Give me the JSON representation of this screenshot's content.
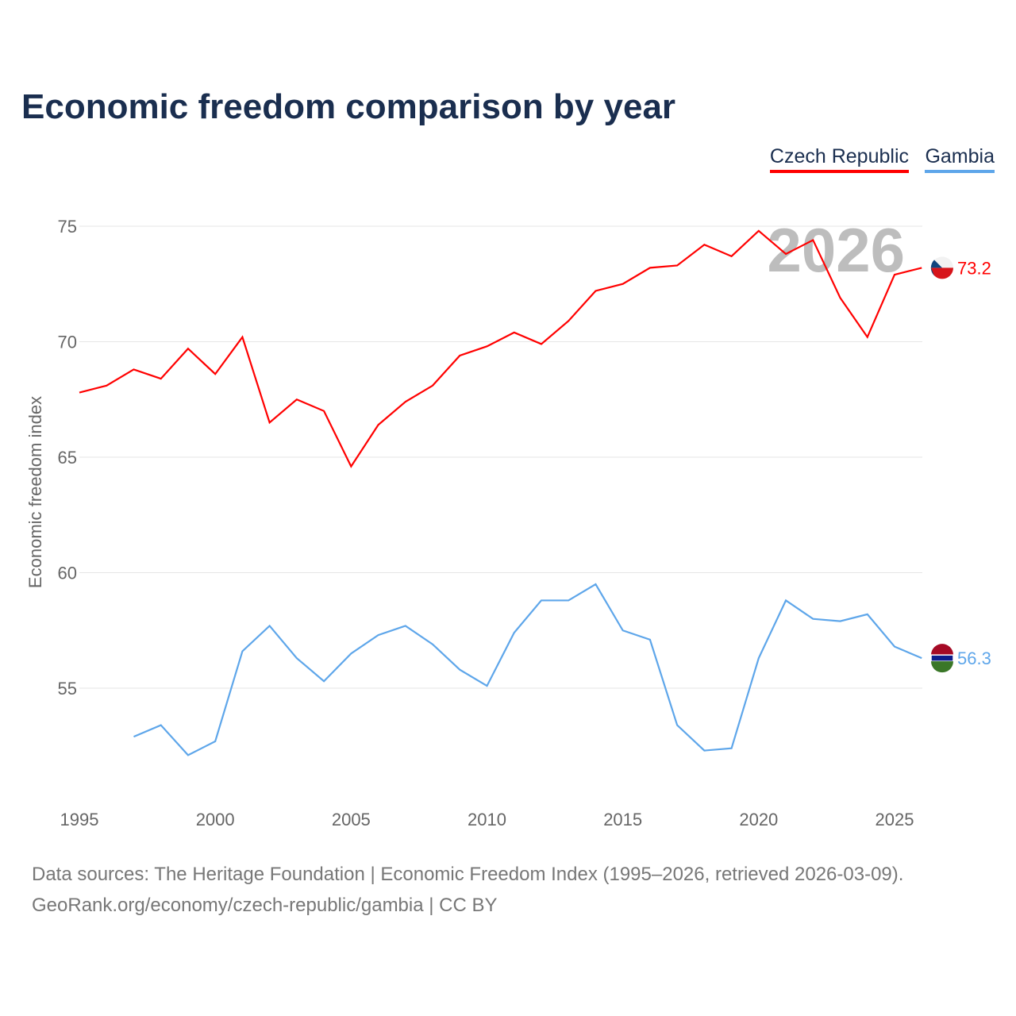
{
  "title": "Economic freedom comparison by year",
  "legend": [
    "Czech Republic",
    "Gambia"
  ],
  "footer": {
    "line1": "Data sources: The Heritage Foundation | Economic Freedom Index (1995–2026, retrieved 2026-03-09).",
    "line2": "GeoRank.org/economy/czech-republic/gambia | CC BY"
  },
  "chart_data": {
    "type": "line",
    "title": "Economic freedom comparison by year",
    "xlabel": "",
    "ylabel": "Economic freedom index",
    "xlim": [
      1995,
      2026
    ],
    "ylim": [
      50.5,
      76
    ],
    "xticks": [
      1995,
      2000,
      2005,
      2010,
      2015,
      2020,
      2025
    ],
    "yticks": [
      55,
      60,
      65,
      70,
      75
    ],
    "watermark": "2026",
    "grid": true,
    "legend_position": "top-right",
    "series": [
      {
        "name": "Czech Republic",
        "color": "#ff0000",
        "end_label": "73.2",
        "x": [
          1995,
          1996,
          1997,
          1998,
          1999,
          2000,
          2001,
          2002,
          2003,
          2004,
          2005,
          2006,
          2007,
          2008,
          2009,
          2010,
          2011,
          2012,
          2013,
          2014,
          2015,
          2016,
          2017,
          2018,
          2019,
          2020,
          2021,
          2022,
          2023,
          2024,
          2025,
          2026
        ],
        "values": [
          67.8,
          68.1,
          68.8,
          68.4,
          69.7,
          68.6,
          70.2,
          66.5,
          67.5,
          67.0,
          64.6,
          66.4,
          67.4,
          68.1,
          69.4,
          69.8,
          70.4,
          69.9,
          70.9,
          72.2,
          72.5,
          73.2,
          73.3,
          74.2,
          73.7,
          74.8,
          73.8,
          74.4,
          71.9,
          70.2,
          72.9,
          73.2
        ]
      },
      {
        "name": "Gambia",
        "color": "#5ea6ea",
        "end_label": "56.3",
        "x": [
          1997,
          1998,
          1999,
          2000,
          2001,
          2002,
          2003,
          2004,
          2005,
          2006,
          2007,
          2008,
          2009,
          2010,
          2011,
          2012,
          2013,
          2014,
          2015,
          2016,
          2017,
          2018,
          2019,
          2020,
          2021,
          2022,
          2023,
          2024,
          2025,
          2026
        ],
        "values": [
          52.9,
          53.4,
          52.1,
          52.7,
          56.6,
          57.7,
          56.3,
          55.3,
          56.5,
          57.3,
          57.7,
          56.9,
          55.8,
          55.1,
          57.4,
          58.8,
          58.8,
          59.5,
          57.5,
          57.1,
          53.4,
          52.3,
          52.4,
          56.3,
          58.8,
          58.0,
          57.9,
          58.2,
          56.8,
          56.3
        ]
      }
    ]
  }
}
